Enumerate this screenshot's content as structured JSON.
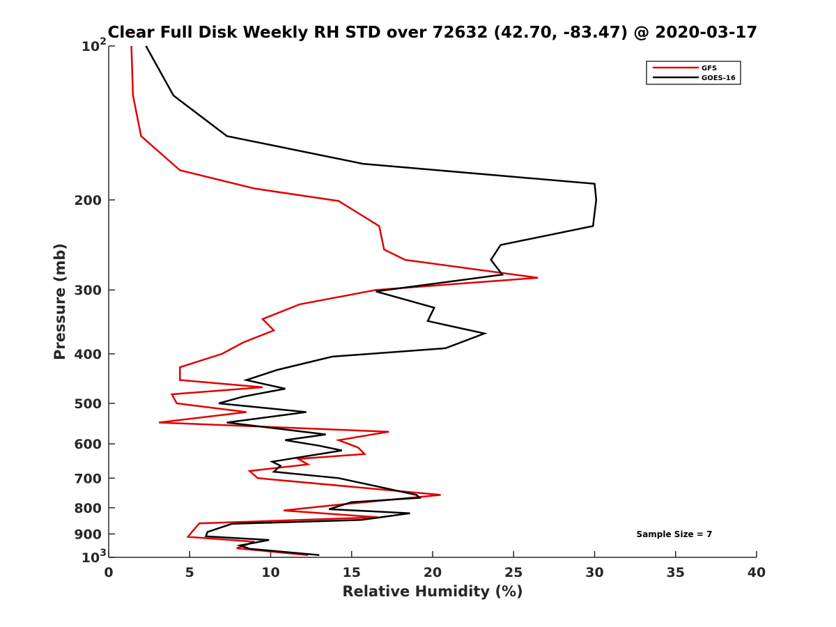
{
  "chart_data": {
    "type": "line",
    "title": "Clear Full Disk Weekly RH STD over 72632 (42.70, -83.47) @ 2020-03-17",
    "xlabel": "Relative Humidity (%)",
    "ylabel": "Pressure (mb)",
    "xlim": [
      0,
      40
    ],
    "ylim": [
      100,
      1000
    ],
    "y_scale": "log",
    "y_reversed": true,
    "x_ticks": [
      "0",
      "5",
      "10",
      "15",
      "20",
      "25",
      "30",
      "35",
      "40"
    ],
    "y_ticks": [
      {
        "value": 100,
        "base": "10",
        "exp": "2"
      },
      {
        "value": 200,
        "label": "200"
      },
      {
        "value": 300,
        "label": "300"
      },
      {
        "value": 400,
        "label": "400"
      },
      {
        "value": 500,
        "label": "500"
      },
      {
        "value": 600,
        "label": "600"
      },
      {
        "value": 700,
        "label": "700"
      },
      {
        "value": 800,
        "label": "800"
      },
      {
        "value": 900,
        "label": "900"
      },
      {
        "value": 1000,
        "base": "10",
        "exp": "3"
      }
    ],
    "legend_position": "top-right",
    "annotation": "Sample Size = 7",
    "series": [
      {
        "name": "GFS",
        "color": "#e00000",
        "points": [
          [
            1.4,
            100
          ],
          [
            1.5,
            125
          ],
          [
            2.0,
            150
          ],
          [
            4.4,
            175
          ],
          [
            9.0,
            190
          ],
          [
            14.2,
            201
          ],
          [
            16.7,
            225
          ],
          [
            17.0,
            250
          ],
          [
            18.3,
            262
          ],
          [
            26.5,
            284
          ],
          [
            16.5,
            300
          ],
          [
            11.8,
            320
          ],
          [
            9.5,
            342
          ],
          [
            10.2,
            360
          ],
          [
            8.3,
            380
          ],
          [
            7.0,
            400
          ],
          [
            4.4,
            425
          ],
          [
            4.4,
            450
          ],
          [
            9.5,
            465
          ],
          [
            3.9,
            480
          ],
          [
            4.2,
            500
          ],
          [
            8.5,
            520
          ],
          [
            3.1,
            545
          ],
          [
            17.3,
            568
          ],
          [
            14.2,
            590
          ],
          [
            15.4,
            610
          ],
          [
            15.8,
            628
          ],
          [
            11.7,
            642
          ],
          [
            12.3,
            658
          ],
          [
            8.7,
            678
          ],
          [
            9.2,
            700
          ],
          [
            20.5,
            755
          ],
          [
            14.0,
            790
          ],
          [
            10.8,
            810
          ],
          [
            16.6,
            835
          ],
          [
            5.6,
            858
          ],
          [
            5.1,
            895
          ],
          [
            4.9,
            912
          ],
          [
            9.0,
            932
          ],
          [
            7.9,
            960
          ],
          [
            12.3,
            990
          ]
        ]
      },
      {
        "name": "GOES-16",
        "color": "#000000",
        "points": [
          [
            2.3,
            100
          ],
          [
            4.0,
            125
          ],
          [
            7.3,
            150
          ],
          [
            15.7,
            170
          ],
          [
            30.0,
            186
          ],
          [
            30.1,
            200
          ],
          [
            29.9,
            225
          ],
          [
            24.2,
            245
          ],
          [
            23.6,
            262
          ],
          [
            24.3,
            280
          ],
          [
            16.5,
            302
          ],
          [
            20.1,
            325
          ],
          [
            19.7,
            345
          ],
          [
            23.2,
            365
          ],
          [
            20.8,
            390
          ],
          [
            13.8,
            405
          ],
          [
            10.4,
            430
          ],
          [
            8.5,
            450
          ],
          [
            10.9,
            468
          ],
          [
            8.3,
            485
          ],
          [
            6.8,
            500
          ],
          [
            12.2,
            520
          ],
          [
            7.3,
            545
          ],
          [
            13.4,
            575
          ],
          [
            10.9,
            590
          ],
          [
            13.0,
            605
          ],
          [
            14.4,
            618
          ],
          [
            10.1,
            650
          ],
          [
            10.6,
            662
          ],
          [
            10.2,
            680
          ],
          [
            14.2,
            700
          ],
          [
            19.0,
            755
          ],
          [
            19.2,
            765
          ],
          [
            15.0,
            780
          ],
          [
            13.6,
            805
          ],
          [
            18.6,
            820
          ],
          [
            15.6,
            845
          ],
          [
            7.6,
            860
          ],
          [
            6.1,
            892
          ],
          [
            6.0,
            910
          ],
          [
            9.9,
            925
          ],
          [
            8.1,
            948
          ],
          [
            8.7,
            962
          ],
          [
            13.0,
            990
          ]
        ]
      }
    ]
  }
}
